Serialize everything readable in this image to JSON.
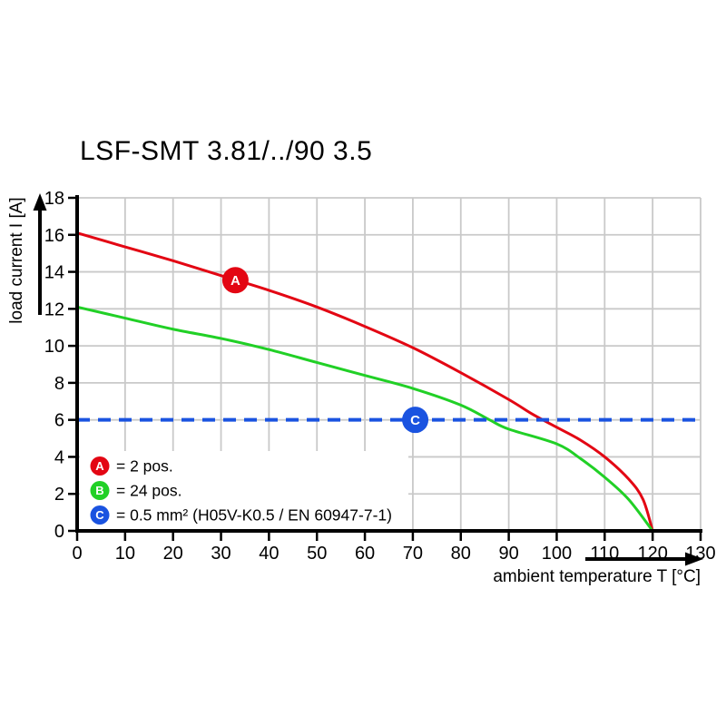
{
  "title": "LSF-SMT 3.81/../90 3.5",
  "colors": {
    "background": "#ffffff",
    "grid": "#c9c9c9",
    "axis": "#000000",
    "series_a_red": "#e30613",
    "series_b_green": "#21d026",
    "series_c_blue": "#1a53e0",
    "marker_text": "#ffffff"
  },
  "chart_data": {
    "type": "line",
    "title": "LSF-SMT 3.81/../90 3.5",
    "xlabel": "ambient temperature T [°C]",
    "ylabel": "load current I [A]",
    "xlim": [
      0,
      130
    ],
    "ylim": [
      0,
      18
    ],
    "xticks": [
      0,
      10,
      20,
      30,
      40,
      50,
      60,
      70,
      80,
      90,
      100,
      110,
      120,
      130
    ],
    "yticks": [
      0,
      2,
      4,
      6,
      8,
      10,
      12,
      14,
      16,
      18
    ],
    "grid": true,
    "legend_position": "inside-bottom-left",
    "series": [
      {
        "id": "a",
        "letter": "A",
        "label": "2 pos.",
        "color": "#e30613",
        "style": "solid",
        "points": [
          [
            0,
            16.1
          ],
          [
            10,
            15.35
          ],
          [
            20,
            14.6
          ],
          [
            30,
            13.8
          ],
          [
            40,
            13.0
          ],
          [
            50,
            12.1
          ],
          [
            60,
            11.05
          ],
          [
            70,
            9.9
          ],
          [
            80,
            8.55
          ],
          [
            90,
            7.1
          ],
          [
            95,
            6.3
          ],
          [
            100,
            5.6
          ],
          [
            105,
            4.9
          ],
          [
            110,
            4.0
          ],
          [
            115,
            2.8
          ],
          [
            118,
            1.7
          ],
          [
            120,
            0
          ]
        ],
        "marker": {
          "x": 33,
          "y": 13.55,
          "letter": "A"
        }
      },
      {
        "id": "b",
        "letter": "B",
        "label": "24 pos.",
        "color": "#21d026",
        "style": "solid",
        "points": [
          [
            0,
            12.1
          ],
          [
            10,
            11.5
          ],
          [
            20,
            10.9
          ],
          [
            30,
            10.4
          ],
          [
            40,
            9.8
          ],
          [
            50,
            9.1
          ],
          [
            60,
            8.4
          ],
          [
            70,
            7.7
          ],
          [
            80,
            6.8
          ],
          [
            86,
            6.0
          ],
          [
            90,
            5.5
          ],
          [
            100,
            4.7
          ],
          [
            105,
            3.9
          ],
          [
            110,
            2.9
          ],
          [
            115,
            1.7
          ],
          [
            120,
            0
          ]
        ],
        "marker": {
          "x": 70.5,
          "y": 6,
          "letter": null
        }
      },
      {
        "id": "c",
        "letter": "C",
        "label": "0.5 mm² (H05V-K0.5 / EN 60947-7-1)",
        "color": "#1a53e0",
        "style": "dashed",
        "points": [
          [
            0,
            6
          ],
          [
            130,
            6
          ]
        ],
        "marker": {
          "x": 70.5,
          "y": 6,
          "letter": "C"
        }
      }
    ],
    "legend_entries": [
      {
        "letter": "A",
        "color": "#e30613",
        "text": "= 2 pos."
      },
      {
        "letter": "B",
        "color": "#21d026",
        "text": "= 24 pos."
      },
      {
        "letter": "C",
        "color": "#1a53e0",
        "text": "= 0.5 mm² (H05V-K0.5 / EN 60947-7-1)"
      }
    ]
  }
}
